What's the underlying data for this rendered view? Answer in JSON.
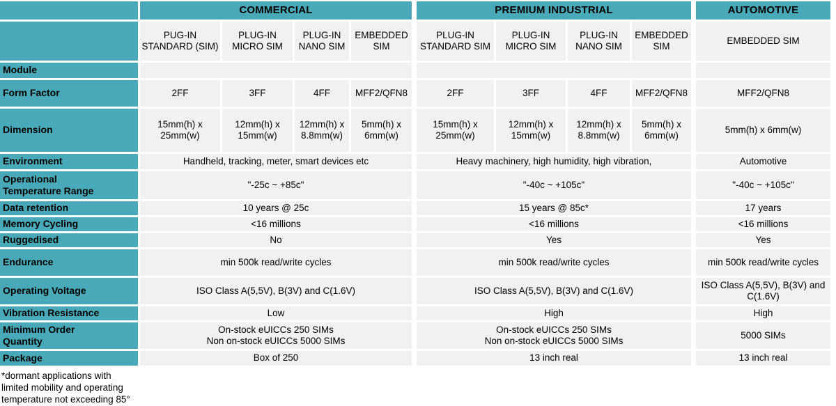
{
  "colors": {
    "header_teal": "#4aa9b9",
    "cell_gray": "#f1f1f2",
    "text": "#000000",
    "grid_gap": "#ffffff"
  },
  "groups": {
    "commercial": {
      "label": "COMMERCIAL",
      "columns": [
        "PUG-IN STANDARD (SIM)",
        "PLUG-IN MICRO SIM",
        "PLUG-IN NANO SIM",
        "EMBEDDED SIM"
      ]
    },
    "premium": {
      "label": "PREMIUM INDUSTRIAL",
      "columns": [
        "PLUG-IN STANDARD SIM",
        "PLUG-IN MICRO SIM",
        "PLUG-IN NANO SIM",
        "EMBEDDED SIM"
      ]
    },
    "automotive": {
      "label": "AUTOMOTIVE",
      "columns": [
        "EMBEDDED SIM"
      ]
    }
  },
  "rows": {
    "module": {
      "label": "Module",
      "commercial": "",
      "premium": "",
      "automotive": ""
    },
    "form_factor": {
      "label": "Form Factor",
      "commercial": [
        "2FF",
        "3FF",
        "4FF",
        "MFF2/QFN8"
      ],
      "premium": [
        "2FF",
        "3FF",
        "4FF",
        "MFF2/QFN8"
      ],
      "automotive": "MFF2/QFN8"
    },
    "dimension": {
      "label": "Dimension",
      "commercial": [
        "15mm(h) x 25mm(w)",
        "12mm(h) x 15mm(w)",
        "12mm(h) x 8.8mm(w)",
        "5mm(h) x 6mm(w)"
      ],
      "premium": [
        "15mm(h) x 25mm(w)",
        "12mm(h) x 15mm(w)",
        "12mm(h) x 8.8mm(w)",
        "5mm(h) x 6mm(w)"
      ],
      "automotive": "5mm(h) x 6mm(w)"
    },
    "environment": {
      "label": "Environment",
      "commercial": "Handheld, tracking, meter, smart devices etc",
      "premium": "Heavy machinery, high humidity, high vibration,",
      "automotive": "Automotive"
    },
    "op_temp": {
      "label": "Operational\nTemperature Range",
      "commercial": "\"-25c ~ +85c\"",
      "premium": "\"-40c ~ +105c\"",
      "automotive": "\"-40c ~ +105c\""
    },
    "data_retention": {
      "label": "Data retention",
      "commercial": "10 years @ 25c",
      "premium": "15 years @ 85c*",
      "automotive": "17 years"
    },
    "memory_cycling": {
      "label": "Memory Cycling",
      "commercial": "<16 millions",
      "premium": "<16 millions",
      "automotive": "<16 millions"
    },
    "ruggedised": {
      "label": "Ruggedised",
      "commercial": "No",
      "premium": "Yes",
      "automotive": "Yes"
    },
    "endurance": {
      "label": "Endurance",
      "commercial": "min 500k read/write cycles",
      "premium": "min 500k read/write cycles",
      "automotive": "min 500k read/write cycles"
    },
    "operating_voltage": {
      "label": "Operating Voltage",
      "commercial": "ISO Class A(5,5V), B(3V) and C(1.6V)",
      "premium": "ISO Class A(5,5V), B(3V) and C(1.6V)",
      "automotive": "ISO Class A(5,5V), B(3V) and C(1.6V)"
    },
    "vibration_resistance": {
      "label": "Vibration Resistance",
      "commercial": "Low",
      "premium": "High",
      "automotive": "High"
    },
    "minimum_order_quantity": {
      "label": "Minimum Order\nQuantity",
      "commercial": "On-stock eUICCs 250 SIMs\nNon on-stock eUICCs 5000 SIMs",
      "premium": "On-stock eUICCs 250 SIMs\nNon on-stock eUICCs 5000 SIMs",
      "automotive": "5000 SIMs"
    },
    "package": {
      "label": "Package",
      "commercial": "Box of 250",
      "premium": "13 inch real",
      "automotive": "13 inch real"
    }
  },
  "footnote": "*dormant applications with limited mobility and operating temperature not exceeding 85°"
}
